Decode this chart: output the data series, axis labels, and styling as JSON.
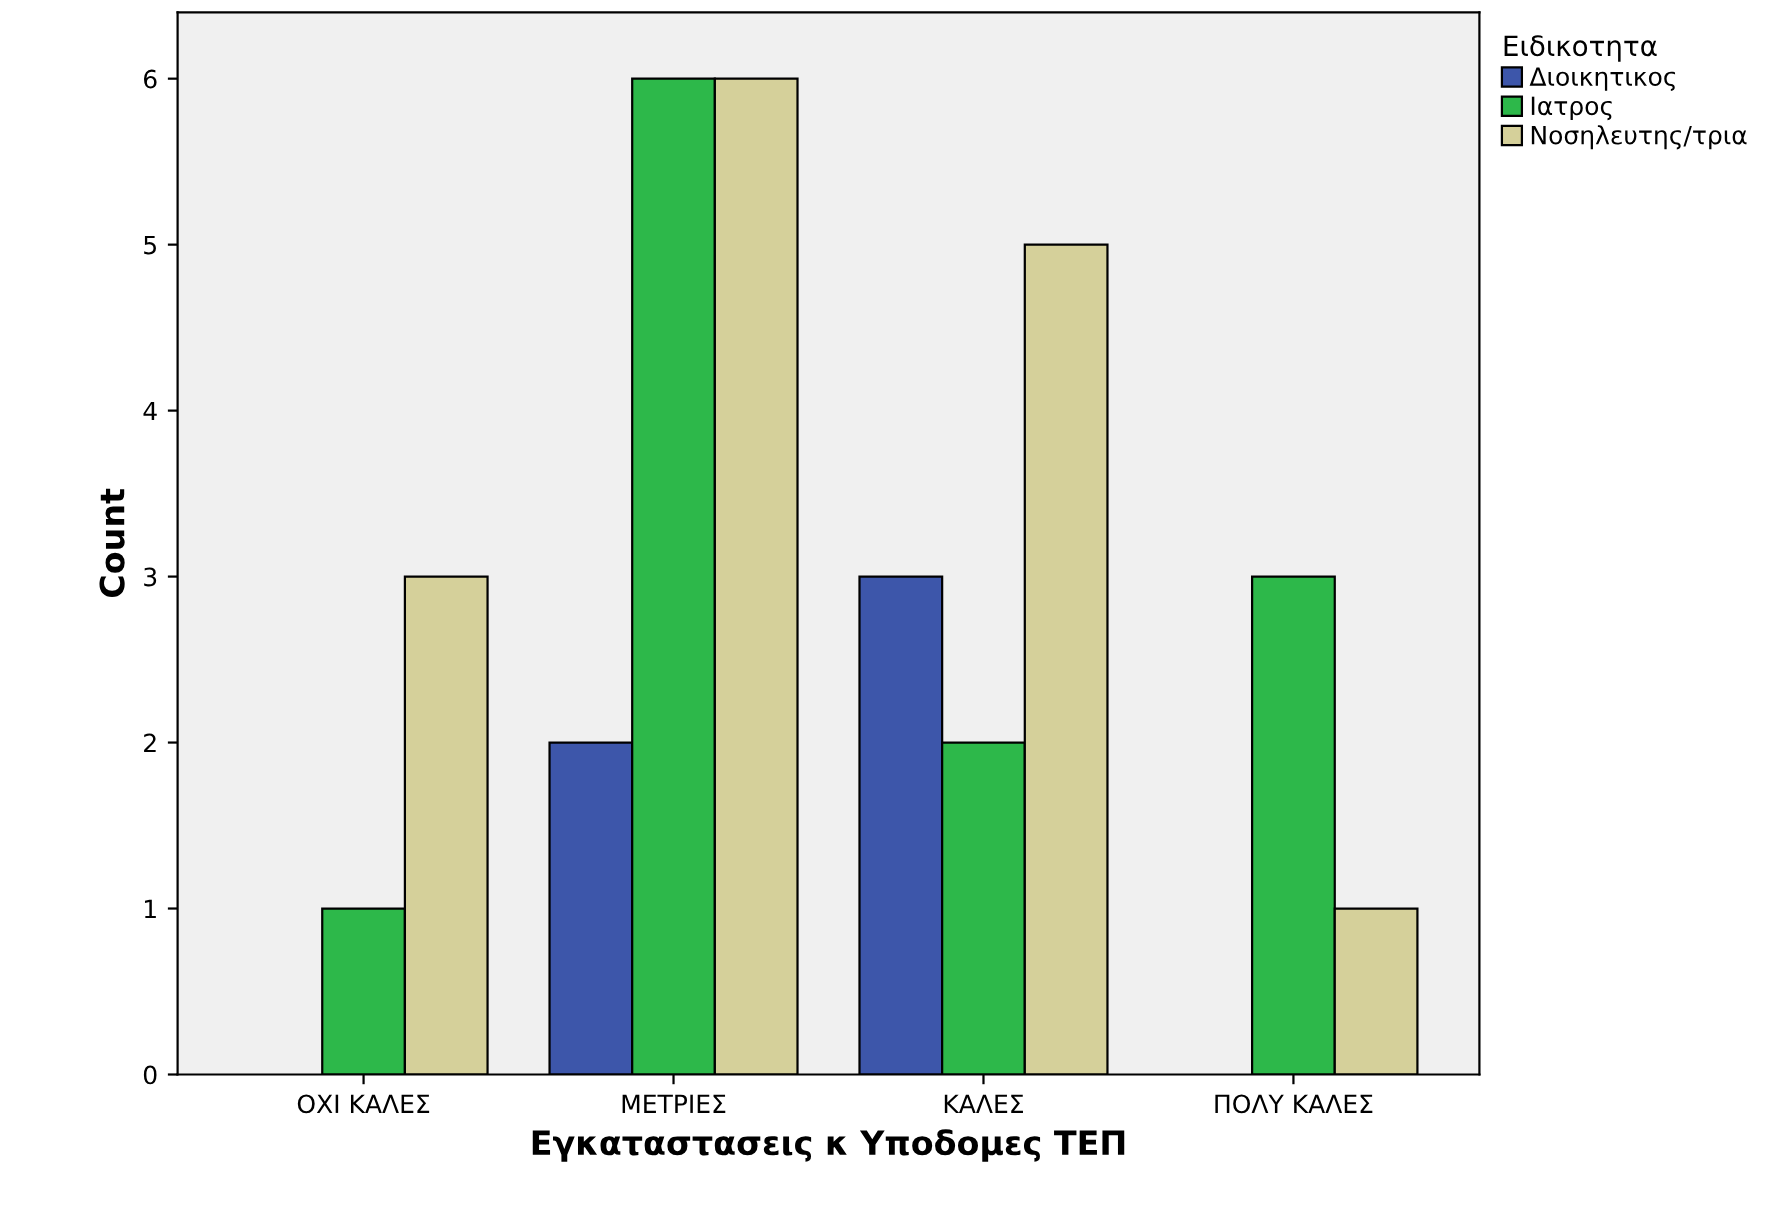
{
  "chart_data": {
    "type": "bar",
    "xlabel": "Εγκαταστασεις κ Υποδομες ΤΕΠ",
    "ylabel": "Count",
    "legend_title": "Ειδικοτητα",
    "legend": "top right",
    "categories": [
      "ΟΧΙ ΚΑΛΕΣ",
      "ΜΕΤΡΙΕΣ",
      "ΚΑΛΕΣ",
      "ΠΟΛΥ ΚΑΛΕΣ"
    ],
    "series": [
      {
        "name": "Διοικητικος",
        "color": "#3d56aa",
        "values": [
          null,
          2,
          3,
          null
        ]
      },
      {
        "name": "Ιατρος",
        "color": "#2db84a",
        "values": [
          1,
          6,
          2,
          3
        ]
      },
      {
        "name": "Νοσηλευτης/τρια",
        "color": "#d5d09a",
        "values": [
          3,
          6,
          5,
          1
        ]
      }
    ],
    "ylim": [
      0,
      6.4
    ],
    "yticks": [
      0,
      1,
      2,
      3,
      4,
      5,
      6
    ],
    "grid": false
  }
}
